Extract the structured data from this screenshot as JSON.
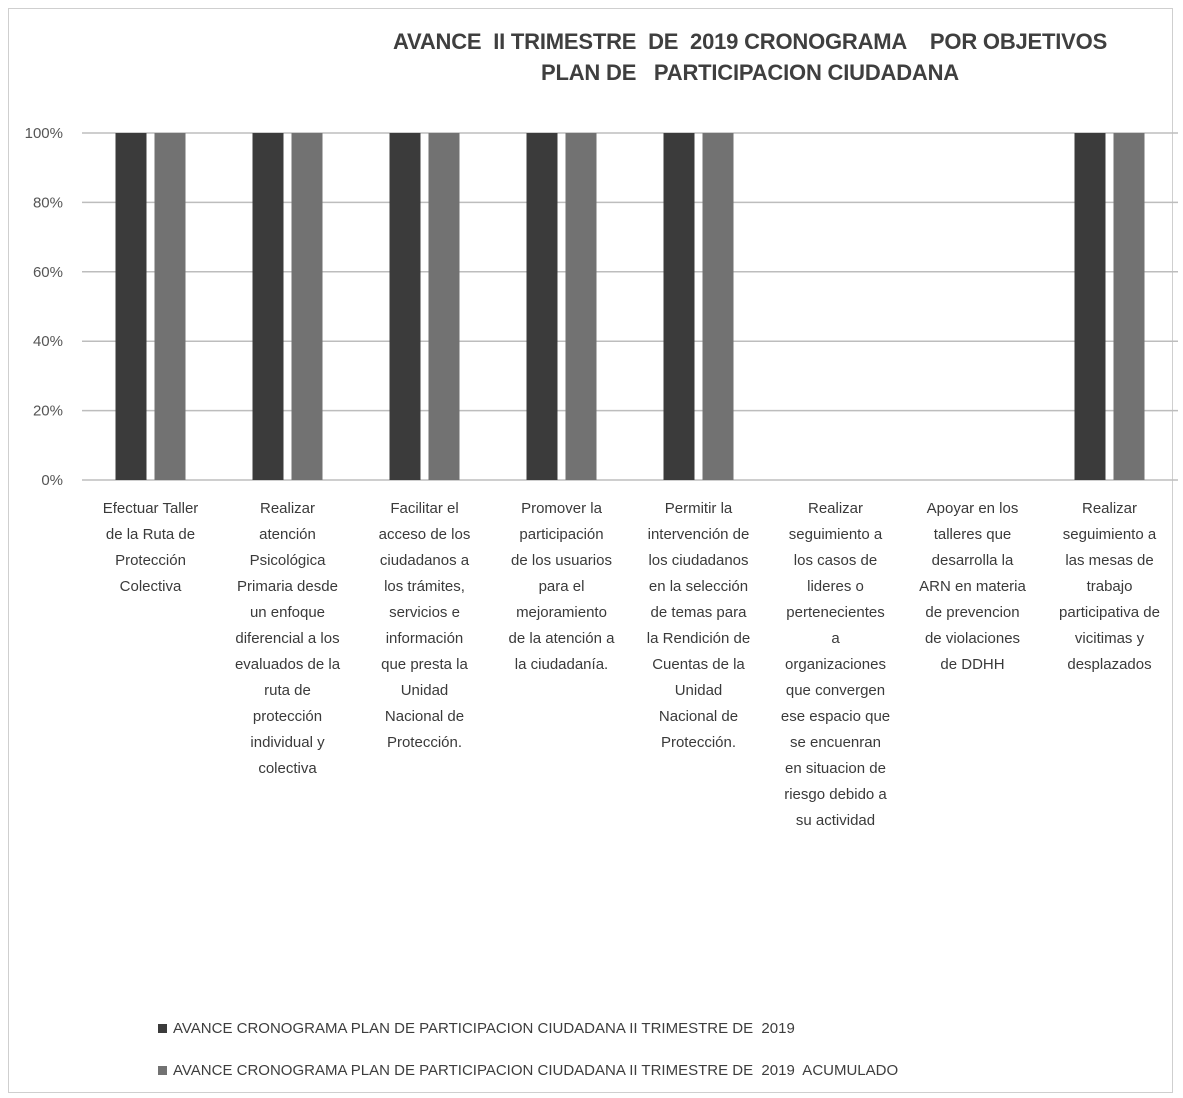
{
  "chart_data": {
    "type": "bar",
    "title_lines": [
      "AVANCE  II TRIMESTRE  DE  2019 CRONOGRAMA    POR OBJETIVOS",
      "PLAN DE   PARTICIPACION CIUDADANA"
    ],
    "ylim": [
      0,
      100
    ],
    "yticks": [
      "0%",
      "20%",
      "40%",
      "60%",
      "80%",
      "100%"
    ],
    "grid": true,
    "legend_position": "bottom-left",
    "categories": [
      "Efectuar  Taller de la Ruta de Protección Colectiva",
      "Realizar atención Psicológica Primaria desde un enfoque diferencial a los evaluados de la ruta de protección individual y colectiva",
      "Facilitar el acceso de los ciudadanos a los trámites, servicios e información que presta la Unidad Nacional de Protección.",
      "Promover la participación de los usuarios para el mejoramiento de la atención a la ciudadanía.",
      "Permitir la intervención de los ciudadanos en la selección de temas para la Rendición de Cuentas de la Unidad Nacional de Protección.",
      "Realizar seguimiento a los casos de lideres o pertenecientes a organizaciones que convergen ese espacio que se encuenran en situacion de riesgo debido a su actividad",
      "Apoyar en los talleres que desarrolla la ARN en materia de prevencion de violaciones de DDHH",
      "Realizar seguimiento a las mesas de trabajo participativa de vicitimas y desplazados"
    ],
    "category_lines": [
      [
        "Efectuar  Taller",
        "de la Ruta de",
        "Protección",
        "Colectiva"
      ],
      [
        "Realizar",
        "atención",
        "Psicológica",
        "Primaria desde",
        "un enfoque",
        "diferencial a los",
        "evaluados de la",
        "ruta de",
        "protección",
        "individual y",
        "colectiva"
      ],
      [
        "Facilitar el",
        "acceso de los",
        "ciudadanos a",
        "los trámites,",
        "servicios e",
        "información",
        "que presta la",
        "Unidad",
        "Nacional de",
        "Protección."
      ],
      [
        "Promover la",
        "participación",
        "de los usuarios",
        "para el",
        "mejoramiento",
        "de la atención a",
        "la ciudadanía."
      ],
      [
        "Permitir la",
        "intervención de",
        "los ciudadanos",
        "en la selección",
        "de temas para",
        "la Rendición de",
        "Cuentas de la",
        "Unidad",
        "Nacional de",
        "Protección."
      ],
      [
        "Realizar",
        "seguimiento a",
        "los casos  de",
        "lideres o",
        "pertenecientes",
        "a",
        "organizaciones",
        "que convergen",
        "ese espacio que",
        "se encuenran",
        "en situacion de",
        "riesgo debido a",
        "su  actividad"
      ],
      [
        "Apoyar  en los",
        "talleres que",
        "desarrolla la",
        "ARN en materia",
        "de prevencion",
        "de violaciones",
        "de DDHH"
      ],
      [
        "Realizar",
        "seguimiento a",
        "las mesas de",
        "trabajo",
        "participativa de",
        "vicitimas y",
        "desplazados"
      ]
    ],
    "series": [
      {
        "name": "AVANCE CRONOGRAMA PLAN DE PARTICIPACION CIUDADANA II TRIMESTRE DE  2019",
        "color": "#3b3b3b",
        "values": [
          100,
          100,
          100,
          100,
          100,
          0,
          0,
          100
        ]
      },
      {
        "name": "AVANCE CRONOGRAMA PLAN DE PARTICIPACION CIUDADANA II TRIMESTRE DE  2019  ACUMULADO",
        "color": "#727272",
        "values": [
          100,
          100,
          100,
          100,
          100,
          0,
          0,
          100
        ]
      }
    ]
  }
}
